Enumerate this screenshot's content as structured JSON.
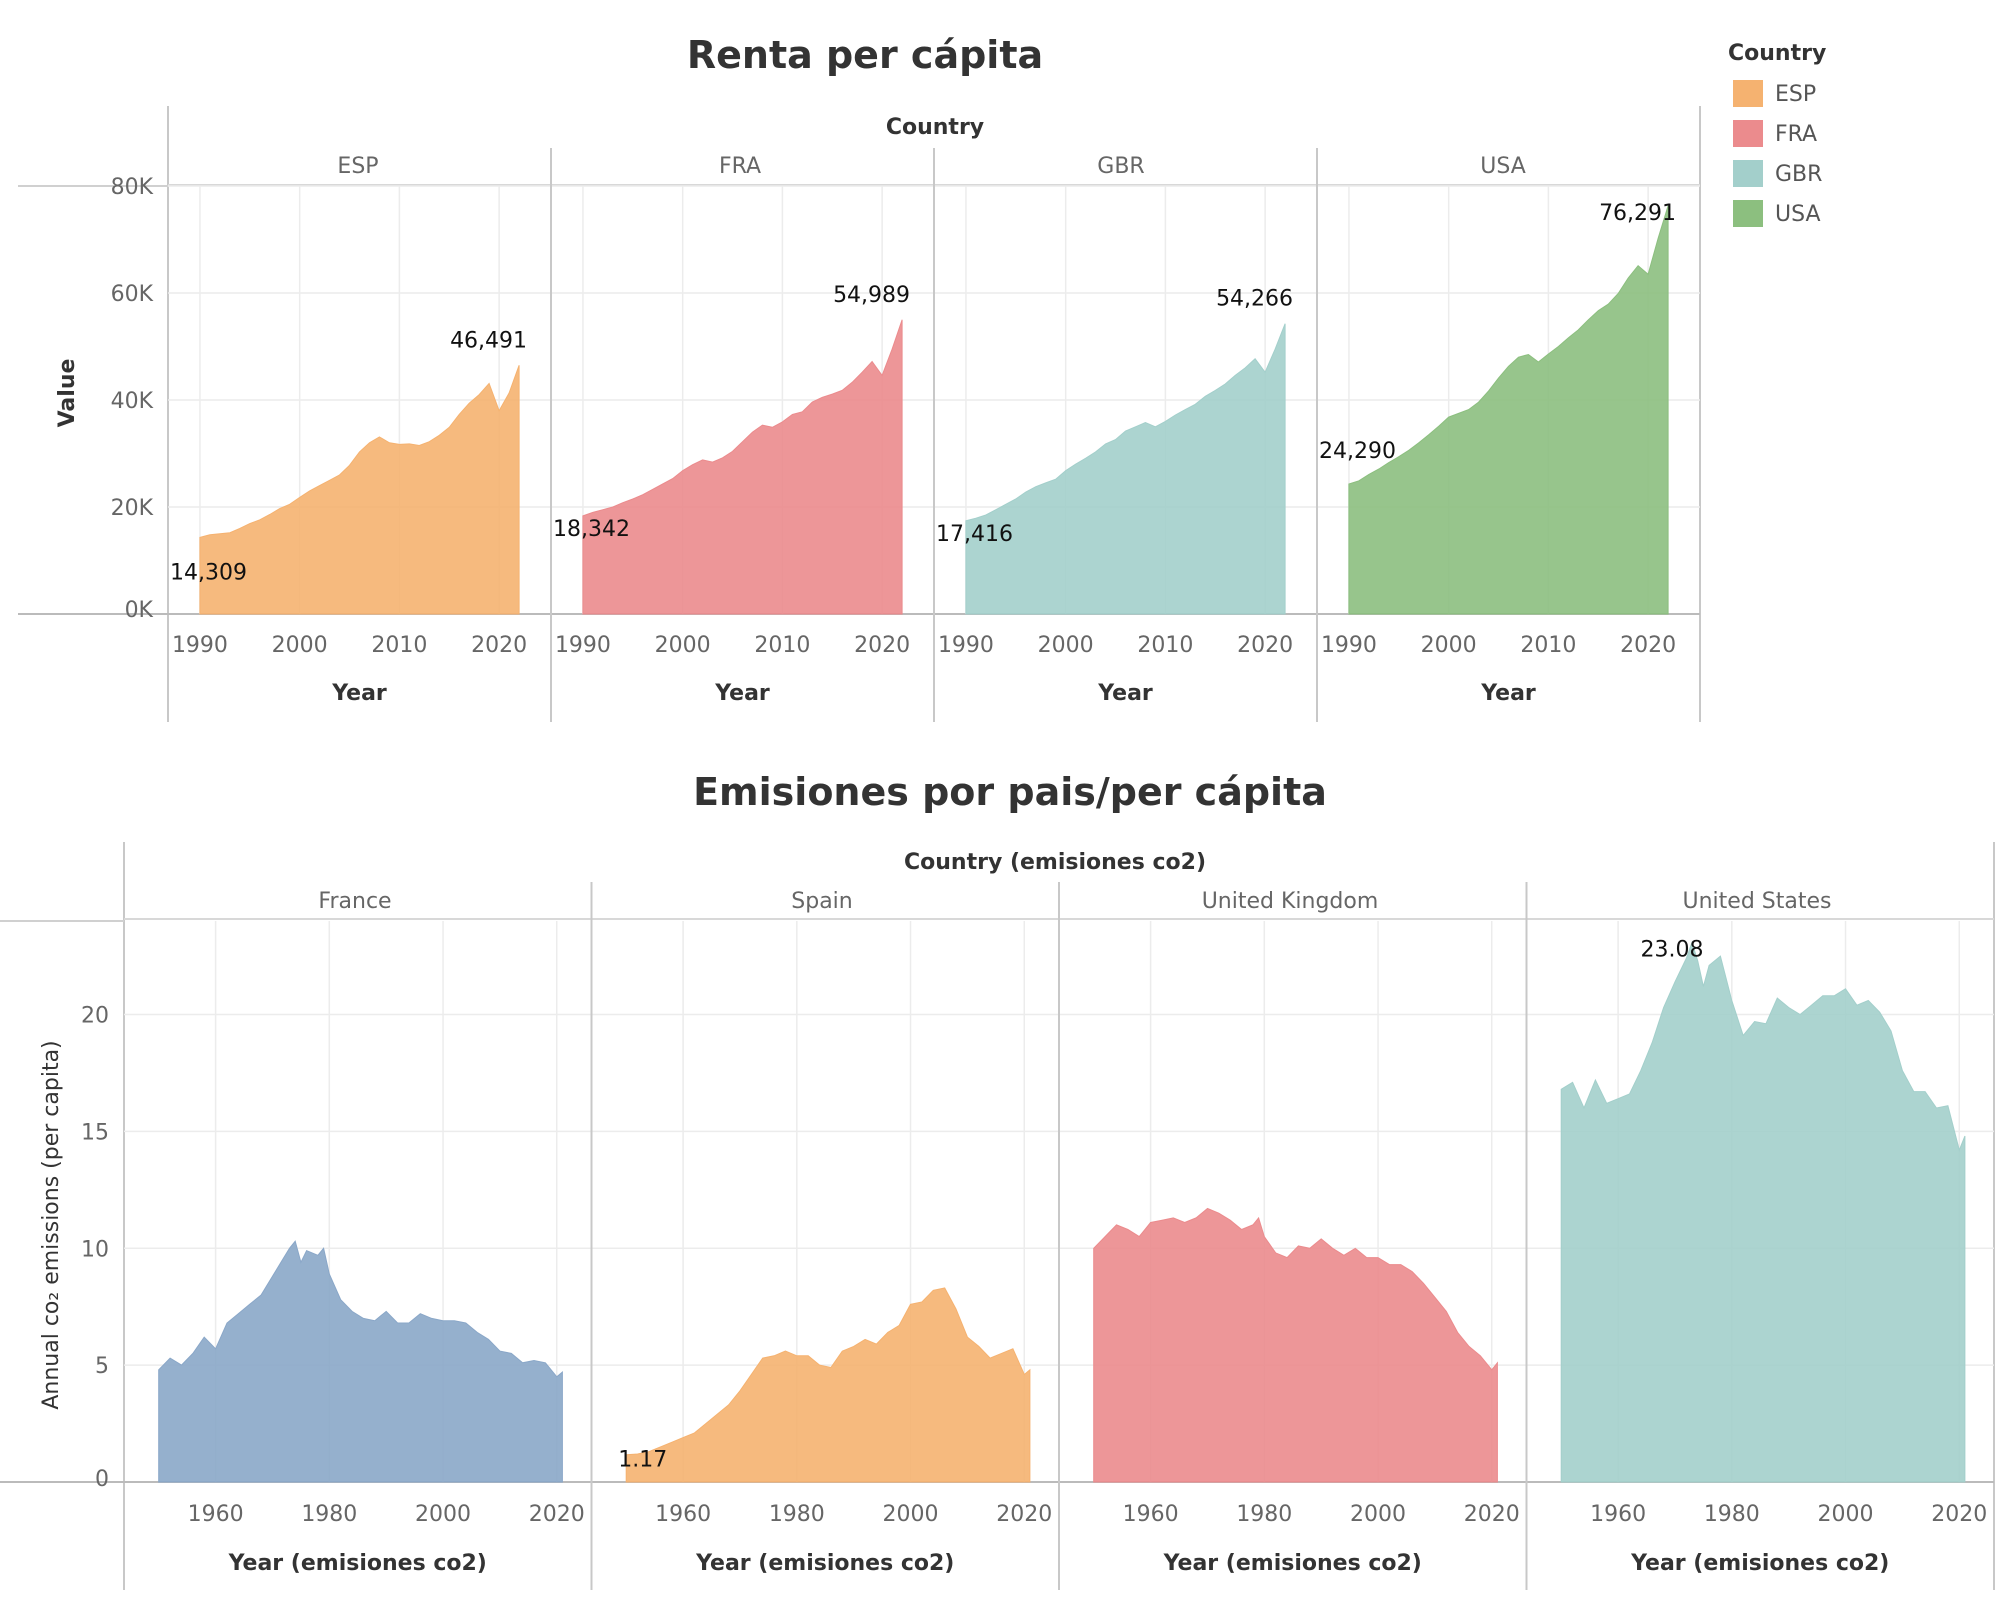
{
  "colors": {
    "ESP": "#f5b270",
    "FRA": "#eb8b8d",
    "GBR": "#a3cfcb",
    "USA": "#8cbf7f",
    "France": "#8aa7c8",
    "Spain": "#f5b270",
    "United Kingdom": "#eb8b8d",
    "United States": "#a3cfcb"
  },
  "chart_data": [
    {
      "type": "area",
      "title": "Renta per cápita",
      "facet_header": "Country",
      "xlabel": "Year",
      "ylabel": "Value",
      "ylim": [
        0,
        80000
      ],
      "xlim": [
        1988,
        2024
      ],
      "y_ticks": [
        "80K",
        "60K",
        "40K",
        "20K",
        "0K"
      ],
      "x_ticks": [
        "1990",
        "2000",
        "2010",
        "2020"
      ],
      "legend": {
        "title": "Country",
        "items": [
          "ESP",
          "FRA",
          "GBR",
          "USA"
        ],
        "position": "right"
      },
      "series": [
        {
          "name": "ESP",
          "x": [
            1990,
            1991,
            1992,
            1993,
            1994,
            1995,
            1996,
            1997,
            1998,
            1999,
            2000,
            2001,
            2002,
            2003,
            2004,
            2005,
            2006,
            2007,
            2008,
            2009,
            2010,
            2011,
            2012,
            2013,
            2014,
            2015,
            2016,
            2017,
            2018,
            2019,
            2020,
            2021,
            2022
          ],
          "values": [
            14309,
            14800,
            15000,
            15200,
            16000,
            16900,
            17600,
            18600,
            19700,
            20500,
            21800,
            23000,
            24000,
            25000,
            26000,
            27800,
            30300,
            32000,
            33100,
            32000,
            31700,
            31800,
            31500,
            32200,
            33400,
            34900,
            37300,
            39400,
            41000,
            43100,
            38000,
            41300,
            46491
          ],
          "labels": [
            {
              "text": "14,309",
              "index": 0
            },
            {
              "text": "46,491",
              "index": 32
            }
          ]
        },
        {
          "name": "FRA",
          "x": [
            1990,
            1991,
            1992,
            1993,
            1994,
            1995,
            1996,
            1997,
            1998,
            1999,
            2000,
            2001,
            2002,
            2003,
            2004,
            2005,
            2006,
            2007,
            2008,
            2009,
            2010,
            2011,
            2012,
            2013,
            2014,
            2015,
            2016,
            2017,
            2018,
            2019,
            2020,
            2021,
            2022
          ],
          "values": [
            18342,
            19000,
            19500,
            20000,
            20800,
            21500,
            22300,
            23300,
            24300,
            25300,
            26800,
            27900,
            28800,
            28400,
            29200,
            30400,
            32200,
            34000,
            35300,
            34900,
            35900,
            37300,
            37800,
            39600,
            40500,
            41100,
            41800,
            43300,
            45200,
            47200,
            44600,
            49500,
            54989
          ],
          "labels": [
            {
              "text": "18,342",
              "index": 0
            },
            {
              "text": "54,989",
              "index": 32
            }
          ]
        },
        {
          "name": "GBR",
          "x": [
            1990,
            1991,
            1992,
            1993,
            1994,
            1995,
            1996,
            1997,
            1998,
            1999,
            2000,
            2001,
            2002,
            2003,
            2004,
            2005,
            2006,
            2007,
            2008,
            2009,
            2010,
            2011,
            2012,
            2013,
            2014,
            2015,
            2016,
            2017,
            2018,
            2019,
            2020,
            2021,
            2022
          ],
          "values": [
            17416,
            17900,
            18500,
            19500,
            20500,
            21500,
            22800,
            23800,
            24500,
            25200,
            26800,
            28000,
            29100,
            30300,
            31800,
            32600,
            34200,
            35000,
            35800,
            35000,
            36000,
            37200,
            38200,
            39200,
            40700,
            41800,
            43000,
            44600,
            46000,
            47700,
            45200,
            49500,
            54266
          ],
          "labels": [
            {
              "text": "17,416",
              "index": 0
            },
            {
              "text": "54,266",
              "index": 32
            }
          ]
        },
        {
          "name": "USA",
          "x": [
            1990,
            1991,
            1992,
            1993,
            1994,
            1995,
            1996,
            1997,
            1998,
            1999,
            2000,
            2001,
            2002,
            2003,
            2004,
            2005,
            2006,
            2007,
            2008,
            2009,
            2010,
            2011,
            2012,
            2013,
            2014,
            2015,
            2016,
            2017,
            2018,
            2019,
            2020,
            2021,
            2022
          ],
          "values": [
            24290,
            24900,
            26100,
            27100,
            28300,
            29400,
            30600,
            32000,
            33500,
            35100,
            36800,
            37500,
            38200,
            39600,
            41700,
            44100,
            46300,
            48000,
            48500,
            47100,
            48600,
            50000,
            51600,
            53100,
            55000,
            56700,
            57900,
            59900,
            62800,
            65100,
            63500,
            70200,
            76291
          ],
          "labels": [
            {
              "text": "24,290",
              "index": 0
            },
            {
              "text": "76,291",
              "index": 32
            }
          ]
        }
      ]
    },
    {
      "type": "area",
      "title": "Emisiones por pais/per cápita",
      "facet_header": "Country (emisiones co2)",
      "xlabel": "Year (emisiones co2)",
      "ylabel": "Annual co₂ emissions (per capita)",
      "ylim": [
        0,
        24
      ],
      "xlim": [
        1946,
        2024
      ],
      "y_ticks": [
        "20",
        "15",
        "10",
        "5",
        "0"
      ],
      "x_ticks": [
        "1960",
        "1980",
        "2000",
        "2020"
      ],
      "series": [
        {
          "name": "France",
          "x": [
            1950,
            1952,
            1954,
            1956,
            1958,
            1960,
            1962,
            1964,
            1966,
            1968,
            1970,
            1972,
            1973,
            1974,
            1975,
            1976,
            1978,
            1979,
            1980,
            1982,
            1984,
            1986,
            1988,
            1990,
            1992,
            1994,
            1996,
            1998,
            2000,
            2002,
            2004,
            2006,
            2008,
            2010,
            2012,
            2014,
            2016,
            2018,
            2020,
            2021
          ],
          "values": [
            4.8,
            5.3,
            5.0,
            5.5,
            6.2,
            5.7,
            6.8,
            7.2,
            7.6,
            8.0,
            8.8,
            9.6,
            10.0,
            10.3,
            9.4,
            9.9,
            9.7,
            10.0,
            8.9,
            7.8,
            7.3,
            7.0,
            6.9,
            7.3,
            6.8,
            6.8,
            7.2,
            7.0,
            6.9,
            6.9,
            6.8,
            6.4,
            6.1,
            5.6,
            5.5,
            5.1,
            5.2,
            5.1,
            4.5,
            4.7
          ],
          "labels": []
        },
        {
          "name": "Spain",
          "x": [
            1950,
            1952,
            1954,
            1956,
            1958,
            1960,
            1962,
            1964,
            1966,
            1968,
            1970,
            1972,
            1974,
            1976,
            1978,
            1980,
            1982,
            1984,
            1986,
            1988,
            1990,
            1992,
            1994,
            1996,
            1998,
            2000,
            2002,
            2004,
            2006,
            2008,
            2010,
            2012,
            2014,
            2016,
            2018,
            2020,
            2021
          ],
          "values": [
            1.17,
            1.2,
            1.3,
            1.5,
            1.7,
            1.9,
            2.1,
            2.5,
            2.9,
            3.3,
            3.9,
            4.6,
            5.3,
            5.4,
            5.6,
            5.4,
            5.4,
            5.0,
            4.9,
            5.6,
            5.8,
            6.1,
            5.9,
            6.4,
            6.7,
            7.6,
            7.7,
            8.2,
            8.3,
            7.4,
            6.2,
            5.8,
            5.3,
            5.5,
            5.7,
            4.6,
            4.8
          ],
          "labels": [
            {
              "text": "1.17",
              "index": 0
            }
          ]
        },
        {
          "name": "United Kingdom",
          "x": [
            1950,
            1952,
            1954,
            1956,
            1958,
            1960,
            1962,
            1964,
            1966,
            1968,
            1970,
            1972,
            1974,
            1976,
            1978,
            1979,
            1980,
            1982,
            1984,
            1986,
            1988,
            1990,
            1992,
            1994,
            1996,
            1998,
            2000,
            2002,
            2004,
            2006,
            2008,
            2010,
            2012,
            2014,
            2016,
            2018,
            2020,
            2021
          ],
          "values": [
            10.0,
            10.5,
            11.0,
            10.8,
            10.5,
            11.1,
            11.2,
            11.3,
            11.1,
            11.3,
            11.7,
            11.5,
            11.2,
            10.8,
            11.0,
            11.3,
            10.5,
            9.8,
            9.6,
            10.1,
            10.0,
            10.4,
            10.0,
            9.7,
            10.0,
            9.6,
            9.6,
            9.3,
            9.3,
            9.0,
            8.5,
            7.9,
            7.3,
            6.4,
            5.8,
            5.4,
            4.8,
            5.1
          ],
          "labels": []
        },
        {
          "name": "United States",
          "x": [
            1950,
            1952,
            1954,
            1956,
            1958,
            1960,
            1962,
            1964,
            1966,
            1968,
            1970,
            1972,
            1973,
            1974,
            1975,
            1976,
            1978,
            1980,
            1982,
            1984,
            1986,
            1988,
            1990,
            1992,
            1994,
            1996,
            1998,
            2000,
            2002,
            2004,
            2006,
            2008,
            2010,
            2012,
            2014,
            2016,
            2018,
            2020,
            2021
          ],
          "values": [
            16.8,
            17.1,
            16.0,
            17.2,
            16.2,
            16.4,
            16.6,
            17.6,
            18.8,
            20.3,
            21.4,
            22.4,
            23.08,
            22.3,
            21.2,
            22.1,
            22.5,
            20.6,
            19.1,
            19.7,
            19.6,
            20.7,
            20.3,
            20.0,
            20.4,
            20.8,
            20.8,
            21.1,
            20.4,
            20.6,
            20.1,
            19.3,
            17.6,
            16.7,
            16.7,
            16.0,
            16.1,
            14.2,
            14.8
          ],
          "labels": [
            {
              "text": "23.08",
              "index": 12
            }
          ]
        }
      ]
    }
  ]
}
